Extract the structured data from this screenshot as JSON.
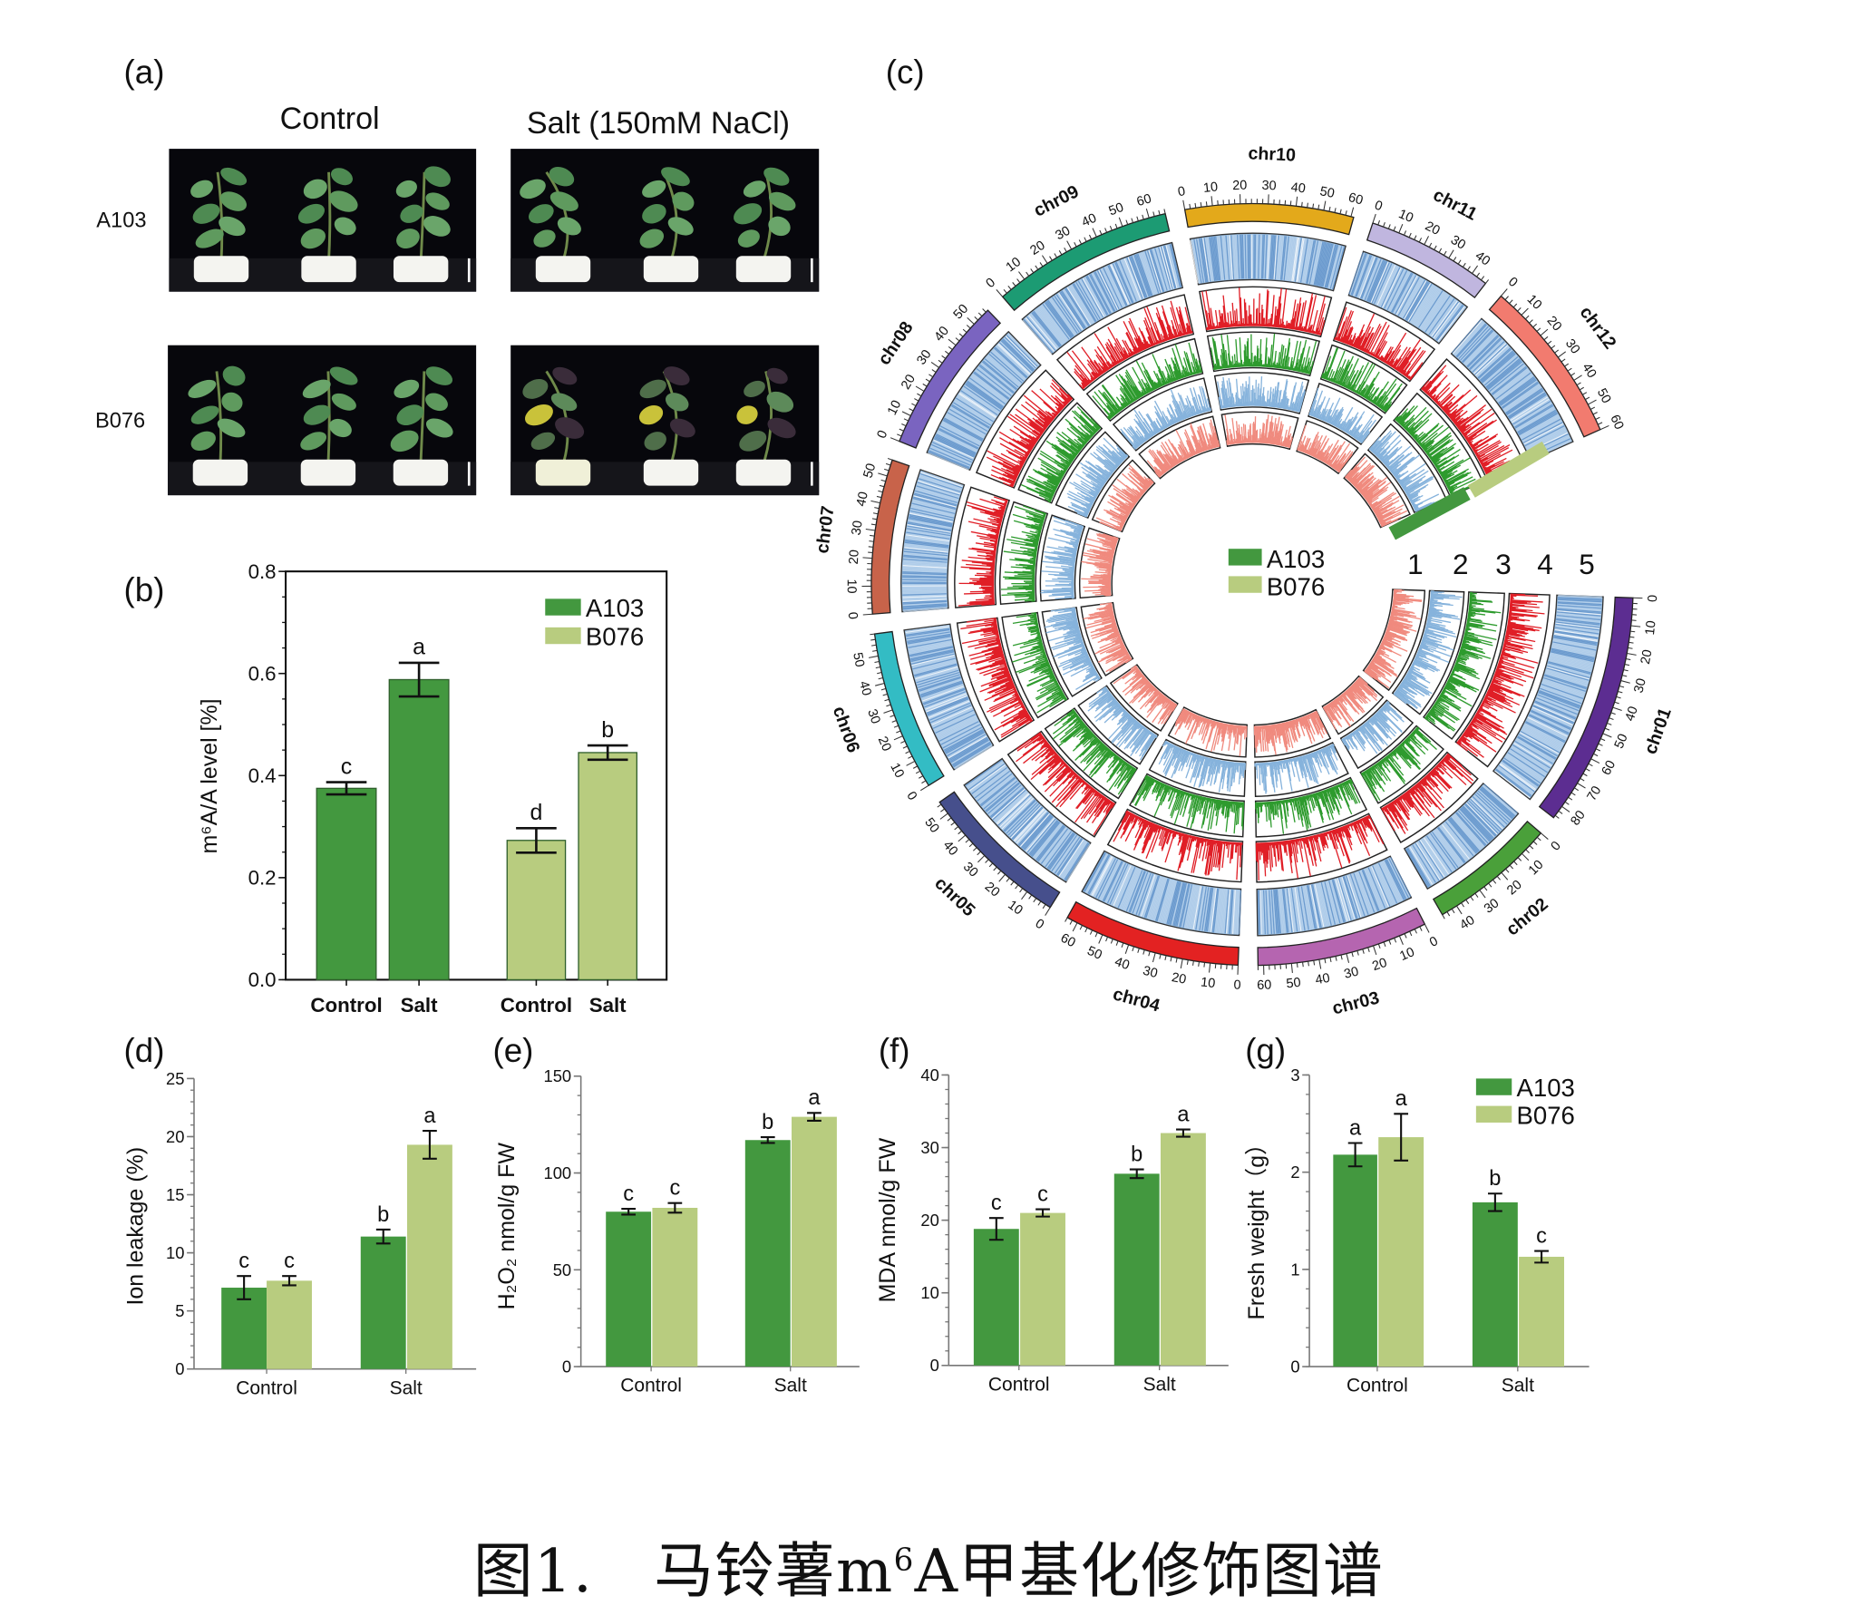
{
  "panel_labels": {
    "a": "(a)",
    "b": "(b)",
    "c": "(c)",
    "d": "(d)",
    "e": "(e)",
    "f": "(f)",
    "g": "(g)"
  },
  "photos": {
    "col_labels": [
      "Control",
      "Salt (150mM NaCl)"
    ],
    "row_labels": [
      "A103",
      "B076"
    ]
  },
  "colors": {
    "A103": "#43983f",
    "B076": "#b8cc7f"
  },
  "caption": {
    "prefix": "图1.　马铃薯m",
    "sup": "6",
    "suffix": "A甲基化修饰图谱"
  },
  "chart_data": [
    {
      "id": "b",
      "type": "bar",
      "ylabel": "m⁶A/A level [%]",
      "ylim": [
        0,
        0.8
      ],
      "yticks": [
        "0.0",
        "0.2",
        "0.4",
        "0.6",
        "0.8"
      ],
      "ytick_values": [
        0,
        0.2,
        0.4,
        0.6,
        0.8
      ],
      "categories": [
        "Control",
        "Salt"
      ],
      "legend": "top-right",
      "frame": true,
      "series": [
        {
          "name": "A103",
          "values": [
            0.375,
            0.588
          ],
          "errors": [
            0.012,
            0.033
          ],
          "letters": [
            "c",
            "a"
          ]
        },
        {
          "name": "B076",
          "values": [
            0.273,
            0.445
          ],
          "errors": [
            0.024,
            0.014
          ],
          "letters": [
            "d",
            "b"
          ]
        }
      ]
    },
    {
      "id": "d",
      "type": "bar",
      "ylabel": "Ion leakage (%)",
      "ylim": [
        0,
        25
      ],
      "yticks": [
        "0",
        "5",
        "10",
        "15",
        "20",
        "25"
      ],
      "ytick_values": [
        0,
        5,
        10,
        15,
        20,
        25
      ],
      "categories": [
        "Control",
        "Salt"
      ],
      "series": [
        {
          "name": "A103",
          "values": [
            7.0,
            11.4
          ],
          "errors": [
            1.0,
            0.6
          ],
          "letters": [
            "c",
            "b"
          ]
        },
        {
          "name": "B076",
          "values": [
            7.6,
            19.3
          ],
          "errors": [
            0.4,
            1.2
          ],
          "letters": [
            "c",
            "a"
          ]
        }
      ]
    },
    {
      "id": "e",
      "type": "bar",
      "ylabel": "H₂O₂ nmol/g FW",
      "ylim": [
        0,
        150
      ],
      "yticks": [
        "0",
        "50",
        "100",
        "150"
      ],
      "ytick_values": [
        0,
        50,
        100,
        150
      ],
      "categories": [
        "Control",
        "Salt"
      ],
      "series": [
        {
          "name": "A103",
          "values": [
            80,
            117
          ],
          "errors": [
            1.5,
            1.5
          ],
          "letters": [
            "c",
            "b"
          ]
        },
        {
          "name": "B076",
          "values": [
            82,
            129
          ],
          "errors": [
            2.5,
            2
          ],
          "letters": [
            "c",
            "a"
          ]
        }
      ]
    },
    {
      "id": "f",
      "type": "bar",
      "ylabel": "MDA nmol/g FW",
      "ylim": [
        0,
        40
      ],
      "yticks": [
        "0",
        "10",
        "20",
        "30",
        "40"
      ],
      "ytick_values": [
        0,
        10,
        20,
        30,
        40
      ],
      "categories": [
        "Control",
        "Salt"
      ],
      "series": [
        {
          "name": "A103",
          "values": [
            18.8,
            26.4
          ],
          "errors": [
            1.5,
            0.6
          ],
          "letters": [
            "c",
            "b"
          ]
        },
        {
          "name": "B076",
          "values": [
            21.0,
            32.0
          ],
          "errors": [
            0.5,
            0.5
          ],
          "letters": [
            "c",
            "a"
          ]
        }
      ]
    },
    {
      "id": "g",
      "type": "bar",
      "ylabel": "Fresh weight（g）",
      "ylim": [
        0,
        3
      ],
      "yticks": [
        "0",
        "1",
        "2",
        "3"
      ],
      "ytick_values": [
        0,
        1,
        2,
        3
      ],
      "categories": [
        "Control",
        "Salt"
      ],
      "legend": "top-right",
      "series": [
        {
          "name": "A103",
          "values": [
            2.18,
            1.69
          ],
          "errors": [
            0.12,
            0.09
          ],
          "letters": [
            "a",
            "b"
          ]
        },
        {
          "name": "B076",
          "values": [
            2.36,
            1.13
          ],
          "errors": [
            0.24,
            0.06
          ],
          "letters": [
            "a",
            "c"
          ]
        }
      ]
    },
    {
      "id": "c",
      "type": "circos",
      "track_labels": [
        "1",
        "2",
        "3",
        "4",
        "5"
      ],
      "track_colors": [
        "#f08a7e",
        "#86b3dc",
        "#2e9b2e",
        "#e01e26",
        "#4a7fc1"
      ],
      "legend": [
        {
          "name": "A103",
          "color": "#43983f"
        },
        {
          "name": "B076",
          "color": "#b8cc7f"
        }
      ],
      "chromosomes": [
        {
          "name": "chr01",
          "length": 85,
          "color": "#5c2d91"
        },
        {
          "name": "chr02",
          "length": 46,
          "color": "#4aa03a"
        },
        {
          "name": "chr03",
          "length": 62,
          "color": "#b565b0"
        },
        {
          "name": "chr04",
          "length": 64,
          "color": "#e32222"
        },
        {
          "name": "chr05",
          "length": 55,
          "color": "#464f8c"
        },
        {
          "name": "chr06",
          "length": 58,
          "color": "#33bcc4"
        },
        {
          "name": "chr07",
          "length": 56,
          "color": "#c8634a"
        },
        {
          "name": "chr08",
          "length": 57,
          "color": "#7a64c0"
        },
        {
          "name": "chr09",
          "length": 66,
          "color": "#1c9b73"
        },
        {
          "name": "chr10",
          "length": 61,
          "color": "#e3a91b"
        },
        {
          "name": "chr11",
          "length": 46,
          "color": "#c0b6df"
        },
        {
          "name": "chr12",
          "length": 60,
          "color": "#f27b6f"
        }
      ]
    }
  ]
}
